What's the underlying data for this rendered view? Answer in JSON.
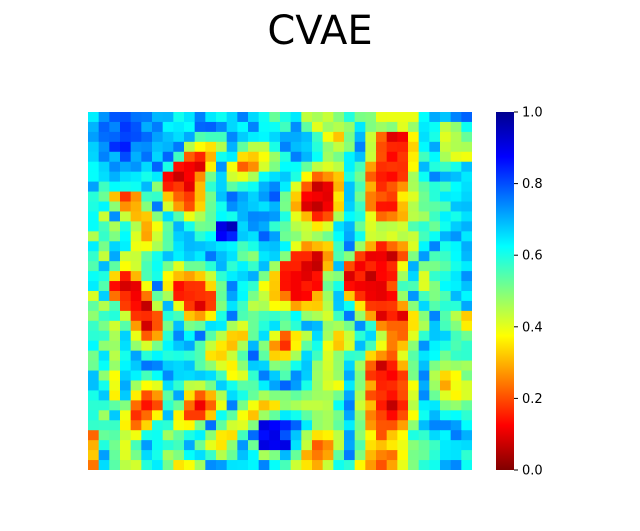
{
  "chart_data": {
    "type": "heatmap",
    "title": "CVAE",
    "xlabel": "",
    "ylabel": "",
    "axes_visible": false,
    "grid": false,
    "colormap": "jet_reversed",
    "colorbar": {
      "orientation": "vertical",
      "placement": "right",
      "range": [
        0.0,
        1.0
      ],
      "ticks": [
        0.0,
        0.2,
        0.4,
        0.6,
        0.8,
        1.0
      ],
      "tick_labels": [
        "0.0",
        "0.2",
        "0.4",
        "0.6",
        "0.8",
        "1.0"
      ],
      "colors": [
        "#800000",
        "#ff0000",
        "#ff8000",
        "#ffff00",
        "#80ff80",
        "#00ffff",
        "#0080ff",
        "#0000ff",
        "#00008f"
      ]
    },
    "map_rows": 36,
    "map_cols": 36,
    "map_description": "Dense texture of predominantly low values (dark red / red) with meandering high-value (cyan / blue) streaks; strongest high values in the upper-left corner and along the right edge"
  }
}
